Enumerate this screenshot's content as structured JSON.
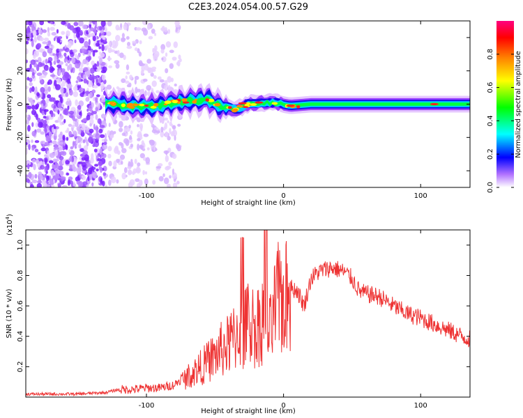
{
  "title": "C2E3.2024.054.00.57.G29",
  "chart_data": [
    {
      "type": "heatmap",
      "xlabel": "Height of straight line (km)",
      "ylabel": "Frequency (Hz)",
      "xlim": [
        -188,
        136
      ],
      "ylim": [
        -50,
        50
      ],
      "xticks": [
        -100,
        0,
        100
      ],
      "xtick_labels": [
        "-100",
        "0",
        "100"
      ],
      "yticks": [
        -40,
        -20,
        0,
        20,
        40
      ],
      "ytick_labels": [
        "-40",
        "-20",
        "0",
        "20",
        "40"
      ],
      "colorbar": {
        "label": "Normalized spectral amplitude",
        "range": [
          0,
          1
        ],
        "ticks": [
          0.0,
          0.2,
          0.4,
          0.6,
          0.8
        ],
        "tick_labels": [
          "0.0",
          "0.2",
          "0.4",
          "0.6",
          "0.8"
        ],
        "colors": [
          "#ffffff",
          "#8000ff",
          "#0000ff",
          "#00ffff",
          "#00ff00",
          "#ffff00",
          "#ff8000",
          "#ff0000",
          "#ff0080"
        ]
      },
      "ridge": [
        {
          "x": -128,
          "f": 0.5
        },
        {
          "x": -110,
          "f": -1
        },
        {
          "x": -95,
          "f": -1.5
        },
        {
          "x": -80,
          "f": 1
        },
        {
          "x": -65,
          "f": 2
        },
        {
          "x": -55,
          "f": 3
        },
        {
          "x": -45,
          "f": -2
        },
        {
          "x": -35,
          "f": -3
        },
        {
          "x": -25,
          "f": 0
        },
        {
          "x": -15,
          "f": 1
        },
        {
          "x": -5,
          "f": 0.5
        },
        {
          "x": 5,
          "f": -1
        },
        {
          "x": 20,
          "f": 0
        },
        {
          "x": 50,
          "f": 0
        },
        {
          "x": 80,
          "f": 0
        },
        {
          "x": 110,
          "f": 0
        },
        {
          "x": 136,
          "f": 0
        }
      ],
      "grid": false
    },
    {
      "type": "line",
      "xlabel": "Height of straight line (km)",
      "ylabel": "SNR (10 * v/v)",
      "y_multiplier": "(x10",
      "y_multiplier_exp": "4",
      "y_multiplier_close": ")",
      "xlim": [
        -188,
        136
      ],
      "ylim": [
        0,
        1.1
      ],
      "xticks": [
        -100,
        0,
        100
      ],
      "xtick_labels": [
        "-100",
        "0",
        "100"
      ],
      "yticks": [
        0.2,
        0.4,
        0.6,
        0.8,
        1.0
      ],
      "ytick_labels": [
        "0.2",
        "0.4",
        "0.6",
        "0.8",
        "1.0"
      ],
      "color": "#ee3333",
      "series": [
        {
          "x": [
            -188,
            -170,
            -150,
            -130,
            -120,
            -110,
            -100,
            -90,
            -80,
            -70,
            -60,
            -50,
            -45,
            -40,
            -35,
            -30,
            -25,
            -20,
            -15,
            -10,
            -5,
            0,
            5,
            10,
            15,
            20,
            25,
            30,
            35,
            40,
            45,
            50,
            55,
            60,
            70,
            80,
            90,
            100,
            110,
            120,
            130,
            136
          ],
          "y": [
            0.02,
            0.02,
            0.02,
            0.03,
            0.05,
            0.05,
            0.06,
            0.06,
            0.08,
            0.15,
            0.22,
            0.3,
            0.35,
            0.38,
            0.45,
            0.5,
            0.55,
            0.5,
            0.6,
            0.45,
            0.7,
            0.72,
            0.72,
            0.7,
            0.6,
            0.78,
            0.82,
            0.84,
            0.85,
            0.84,
            0.82,
            0.78,
            0.7,
            0.68,
            0.66,
            0.6,
            0.55,
            0.52,
            0.48,
            0.44,
            0.4,
            0.38
          ]
        }
      ],
      "grid": false
    }
  ]
}
